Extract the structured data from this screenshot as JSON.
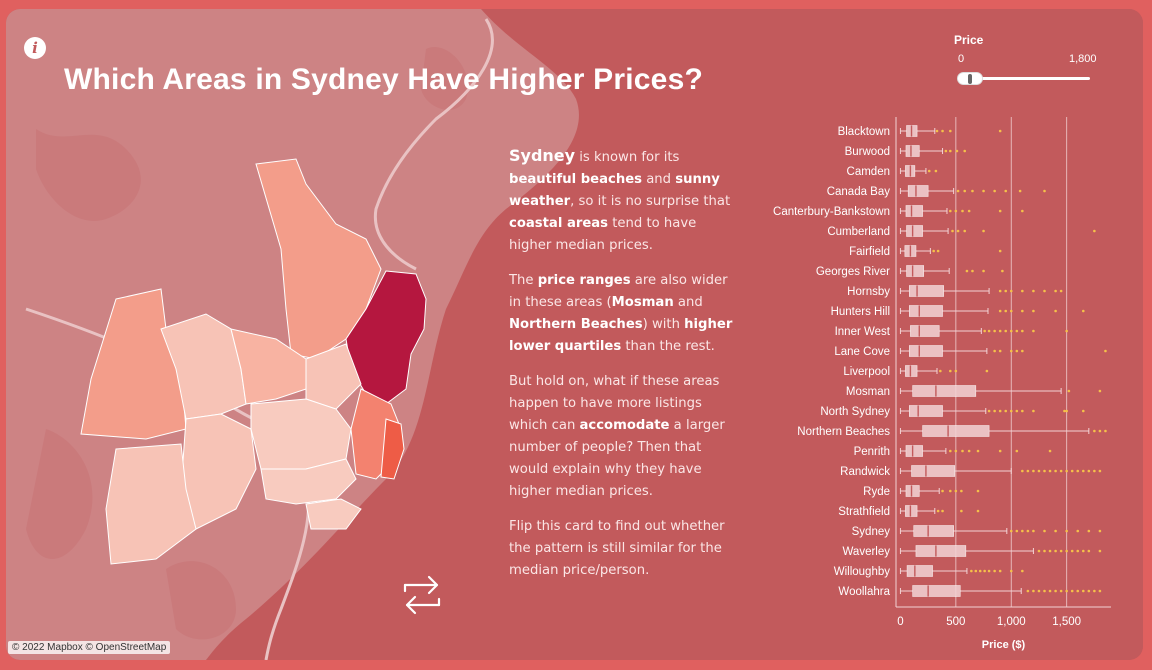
{
  "title": "Which Areas in Sydney Have Higher Prices?",
  "info_icon_glyph": "i",
  "map_credit": "© 2022 Mapbox © OpenStreetMap",
  "narrative": {
    "p1": {
      "city": "Sydney",
      "t1": " is known for its ",
      "b1": "beautiful beaches",
      "t2": " and ",
      "b2": "sunny weather",
      "t3": ", so it is no surprise that ",
      "b3": "coastal areas",
      "t4": " tend to have higher median prices."
    },
    "p2": {
      "t1": "The ",
      "b1": "price ranges",
      "t2": " are also wider in these areas (",
      "b2": "Mosman",
      "t3": " and ",
      "b3": "Northern Beaches",
      "t4": ") with ",
      "b4": "higher lower quartiles",
      "t5": " than the rest."
    },
    "p3": {
      "t1": "But hold on, what if these areas happen to have more listings which can ",
      "b1": "accomodate",
      "t2": " a larger number of people? Then that would explain why they have higher median prices."
    },
    "p4": {
      "t1": "Flip this card to find out whether the pattern is still similar for the median price/person."
    }
  },
  "price_filter": {
    "label": "Price",
    "min_label": "0",
    "max_label": "1,800"
  },
  "colors": {
    "card": "#c25a5c",
    "box": "#f3d3d5",
    "outlier": "#f5c04a",
    "whisker": "#f3d3d5",
    "highlight": "#b5173f"
  },
  "chart_data": {
    "type": "boxplot",
    "xlabel": "Price ($)",
    "xlim": [
      -40,
      1900
    ],
    "xticks": [
      0,
      500,
      1000,
      1500
    ],
    "xtick_labels": [
      "0",
      "500",
      "1,000",
      "1,500"
    ],
    "categories": [
      "Blacktown",
      "Burwood",
      "Camden",
      "Canada Bay",
      "Canterbury-Bankstown",
      "Cumberland",
      "Fairfield",
      "Georges River",
      "Hornsby",
      "Hunters Hill",
      "Inner West",
      "Lane Cove",
      "Liverpool",
      "Mosman",
      "North Sydney",
      "Northern Beaches",
      "Penrith",
      "Randwick",
      "Ryde",
      "Strathfield",
      "Sydney",
      "Waverley",
      "Willoughby",
      "Woollahra"
    ],
    "boxes": [
      {
        "min": 0,
        "q1": 55,
        "median": 100,
        "q3": 150,
        "max": 310,
        "outliers": [
          330,
          380,
          450,
          900
        ]
      },
      {
        "min": 0,
        "q1": 50,
        "median": 95,
        "q3": 170,
        "max": 380,
        "outliers": [
          410,
          450,
          510,
          580
        ]
      },
      {
        "min": 0,
        "q1": 45,
        "median": 90,
        "q3": 130,
        "max": 230,
        "outliers": [
          260,
          320
        ]
      },
      {
        "min": 0,
        "q1": 70,
        "median": 140,
        "q3": 250,
        "max": 480,
        "outliers": [
          520,
          580,
          650,
          750,
          850,
          950,
          1080,
          1300
        ]
      },
      {
        "min": 0,
        "q1": 50,
        "median": 100,
        "q3": 200,
        "max": 420,
        "outliers": [
          450,
          500,
          560,
          620,
          900,
          1100
        ]
      },
      {
        "min": 0,
        "q1": 55,
        "median": 110,
        "q3": 200,
        "max": 430,
        "outliers": [
          470,
          520,
          580,
          750,
          1750
        ]
      },
      {
        "min": 0,
        "q1": 40,
        "median": 90,
        "q3": 140,
        "max": 270,
        "outliers": [
          300,
          340,
          900
        ]
      },
      {
        "min": 0,
        "q1": 55,
        "median": 110,
        "q3": 210,
        "max": 440,
        "outliers": [
          600,
          650,
          750,
          920
        ]
      },
      {
        "min": 0,
        "q1": 80,
        "median": 150,
        "q3": 390,
        "max": 800,
        "outliers": [
          900,
          950,
          1000,
          1100,
          1200,
          1300,
          1400,
          1450
        ]
      },
      {
        "min": 0,
        "q1": 80,
        "median": 170,
        "q3": 380,
        "max": 790,
        "outliers": [
          900,
          950,
          1000,
          1100,
          1200,
          1400,
          1650
        ]
      },
      {
        "min": 0,
        "q1": 90,
        "median": 170,
        "q3": 350,
        "max": 730,
        "outliers": [
          760,
          800,
          850,
          900,
          950,
          1000,
          1050,
          1100,
          1200,
          1500
        ]
      },
      {
        "min": 0,
        "q1": 80,
        "median": 170,
        "q3": 380,
        "max": 780,
        "outliers": [
          850,
          900,
          1000,
          1050,
          1100,
          1850
        ]
      },
      {
        "min": 0,
        "q1": 45,
        "median": 90,
        "q3": 150,
        "max": 330,
        "outliers": [
          360,
          450,
          500,
          780
        ]
      },
      {
        "min": 0,
        "q1": 110,
        "median": 320,
        "q3": 680,
        "max": 1450,
        "outliers": [
          1520,
          1800
        ]
      },
      {
        "min": 0,
        "q1": 80,
        "median": 160,
        "q3": 380,
        "max": 770,
        "outliers": [
          800,
          850,
          900,
          950,
          1000,
          1050,
          1100,
          1200,
          1480,
          1500,
          1650
        ]
      },
      {
        "min": 0,
        "q1": 200,
        "median": 430,
        "q3": 800,
        "max": 1700,
        "outliers": [
          1750,
          1800,
          1850
        ]
      },
      {
        "min": 0,
        "q1": 50,
        "median": 110,
        "q3": 200,
        "max": 410,
        "outliers": [
          450,
          500,
          560,
          620,
          700,
          900,
          1050,
          1350
        ]
      },
      {
        "min": 0,
        "q1": 100,
        "median": 230,
        "q3": 490,
        "max": 1000,
        "outliers": [
          1100,
          1150,
          1200,
          1250,
          1300,
          1350,
          1400,
          1450,
          1500,
          1550,
          1600,
          1650,
          1700,
          1750,
          1800
        ]
      },
      {
        "min": 0,
        "q1": 50,
        "median": 100,
        "q3": 170,
        "max": 350,
        "outliers": [
          380,
          450,
          500,
          550,
          700
        ]
      },
      {
        "min": 0,
        "q1": 45,
        "median": 90,
        "q3": 150,
        "max": 310,
        "outliers": [
          340,
          380,
          550,
          700
        ]
      },
      {
        "min": 0,
        "q1": 120,
        "median": 250,
        "q3": 480,
        "max": 960,
        "outliers": [
          1000,
          1050,
          1100,
          1150,
          1200,
          1300,
          1400,
          1500,
          1600,
          1700,
          1800
        ]
      },
      {
        "min": 0,
        "q1": 140,
        "median": 320,
        "q3": 590,
        "max": 1200,
        "outliers": [
          1250,
          1300,
          1350,
          1400,
          1450,
          1500,
          1550,
          1600,
          1650,
          1700,
          1800
        ]
      },
      {
        "min": 0,
        "q1": 60,
        "median": 130,
        "q3": 290,
        "max": 600,
        "outliers": [
          640,
          680,
          720,
          760,
          800,
          850,
          900,
          1000,
          1100
        ]
      },
      {
        "min": 0,
        "q1": 110,
        "median": 250,
        "q3": 540,
        "max": 1090,
        "outliers": [
          1150,
          1200,
          1250,
          1300,
          1350,
          1400,
          1450,
          1500,
          1550,
          1600,
          1650,
          1700,
          1750,
          1800
        ]
      }
    ]
  }
}
